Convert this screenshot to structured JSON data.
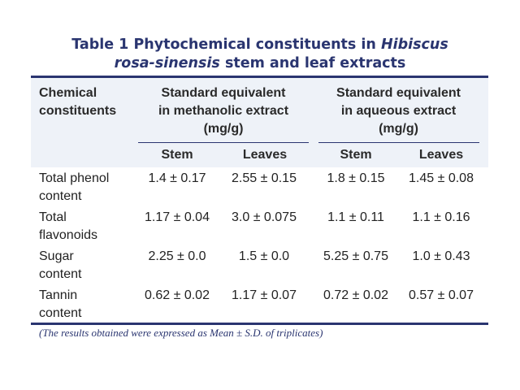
{
  "table": {
    "title_prefix": "Table 1  Phytochemical constituents in ",
    "title_italic_1": "Hibiscus",
    "title_italic_2": "rosa-sinensis",
    "title_suffix": " stem and leaf extracts",
    "header": {
      "col0": [
        "Chemical",
        "constituents"
      ],
      "group1": [
        "Standard equivalent",
        "in methanolic extract",
        "(mg/g)"
      ],
      "group2": [
        "Standard equivalent",
        "in aqueous extract",
        "(mg/g)"
      ],
      "sub": [
        "Stem",
        "Leaves",
        "Stem",
        "Leaves"
      ]
    },
    "rows": [
      {
        "label": [
          "Total phenol",
          "content"
        ],
        "values": [
          "1.4 ± 0.17",
          "2.55 ± 0.15",
          "1.8 ± 0.15",
          "1.45 ± 0.08"
        ]
      },
      {
        "label": [
          "Total",
          "flavonoids"
        ],
        "values": [
          "1.17 ± 0.04",
          "3.0 ± 0.075",
          "1.1 ± 0.11",
          "1.1 ± 0.16"
        ]
      },
      {
        "label": [
          "Sugar",
          "content"
        ],
        "values": [
          "2.25 ± 0.0",
          "1.5 ± 0.0",
          "5.25 ± 0.75",
          "1.0 ± 0.43"
        ]
      },
      {
        "label": [
          "Tannin",
          "content"
        ],
        "values": [
          "0.62 ± 0.02",
          "1.17 ± 0.07",
          "0.72 ± 0.02",
          "0.57 ± 0.07"
        ]
      }
    ],
    "footnote": "(The results obtained were expressed as Mean ± S.D. of triplicates)"
  }
}
